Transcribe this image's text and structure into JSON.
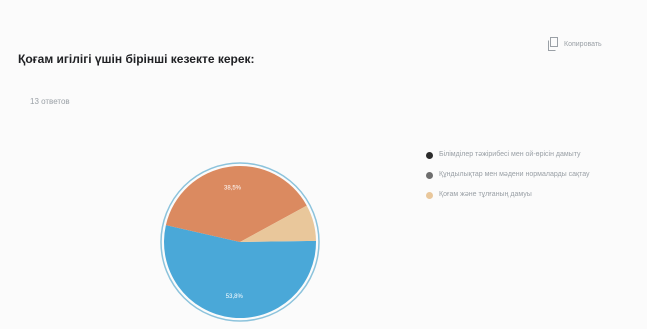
{
  "page": {
    "title": "Қоғам игілігі үшін бірінші кезекте керек:",
    "responses": "13 ответов",
    "copy_label": "Копировать"
  },
  "icons": {
    "copy": "copy-icon"
  },
  "colors": {
    "blue": "#4aa8d8",
    "orange": "#db8a60",
    "beige": "#e9c79b",
    "rim": "#8cc3dc"
  },
  "chart_data": {
    "type": "pie",
    "title": "",
    "slices": [
      {
        "label": "Білімділер тәжірибесі мен ой-өрісін дамыту",
        "value": 53.8,
        "value_label": "53,8%",
        "color": "#4aa8d8"
      },
      {
        "label": "Құндылықтар мен мәдени нормаларды сақтау",
        "value": 38.5,
        "value_label": "38,5%",
        "color": "#db8a60"
      },
      {
        "label": "Қоғам және тұлғаның дамуы",
        "value": 7.7,
        "value_label": "",
        "color": "#e9c79b"
      }
    ],
    "legend_position": "right"
  }
}
